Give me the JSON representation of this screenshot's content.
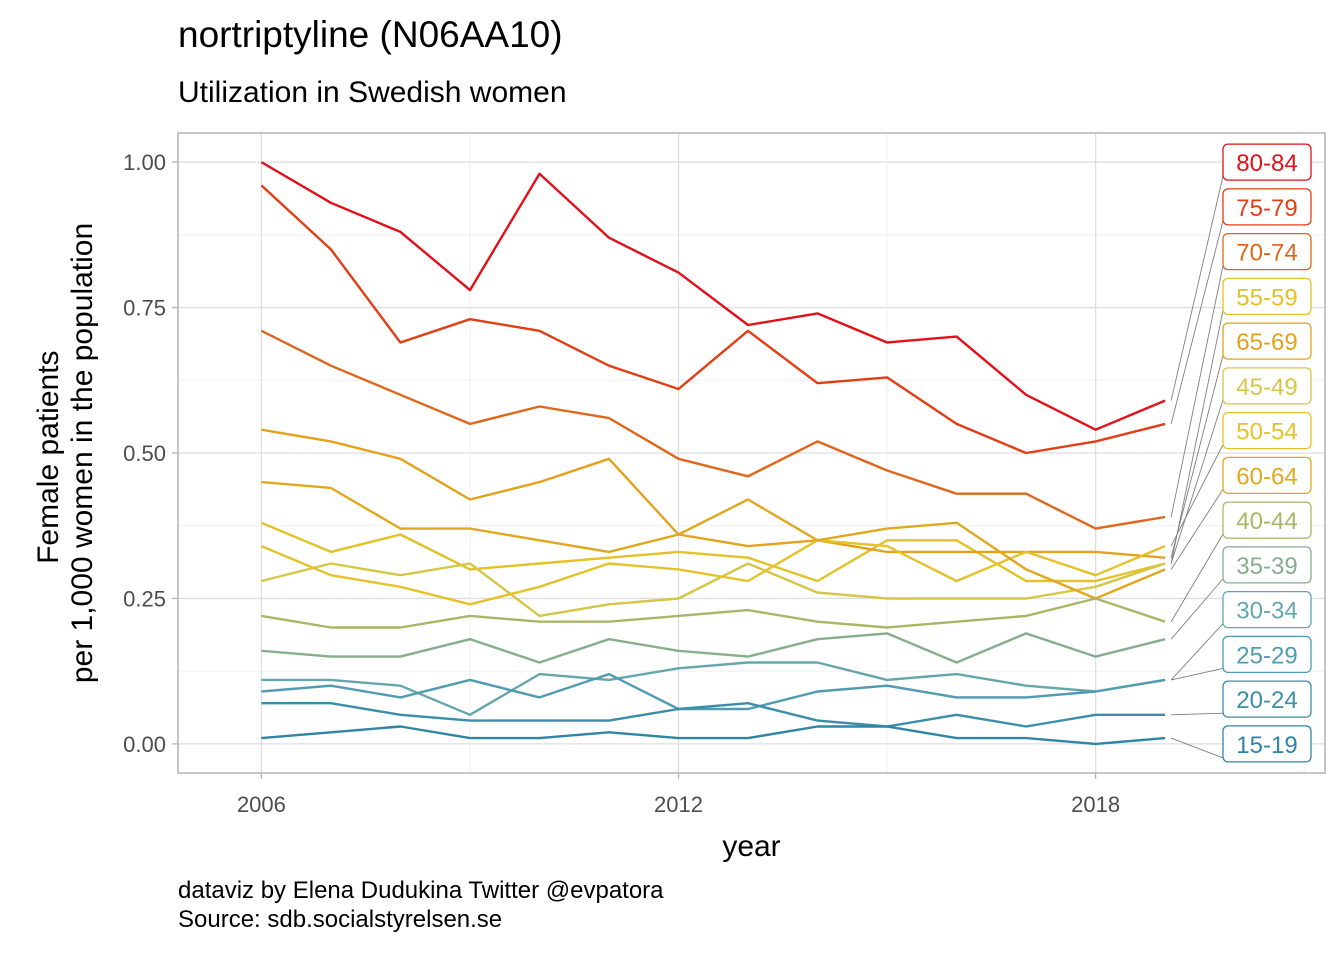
{
  "title": "nortriptyline (N06AA10)",
  "subtitle": "Utilization in Swedish women",
  "caption": {
    "line1": "dataviz by Elena Dudukina Twitter @evpatora",
    "line2": "Source: sdb.socialstyrelsen.se"
  },
  "chart_data": {
    "type": "line",
    "xlabel": "year",
    "ylabel_lines": [
      "Female patients",
      "per 1,000 women in the population"
    ],
    "x": [
      2006,
      2007,
      2008,
      2009,
      2010,
      2011,
      2012,
      2013,
      2014,
      2015,
      2016,
      2017,
      2018,
      2019
    ],
    "x_ticks": [
      2006,
      2012,
      2018
    ],
    "xlim": [
      2004.8,
      2021.3
    ],
    "y_ticks": [
      0.0,
      0.25,
      0.5,
      0.75,
      1.0
    ],
    "y_tick_labels": [
      "0.00",
      "0.25",
      "0.50",
      "0.75",
      "1.00"
    ],
    "ylim": [
      -0.05,
      1.05
    ],
    "grid": true,
    "legend": "direct labels at right",
    "series": [
      {
        "name": "80-84",
        "color": "#e3101a",
        "values": [
          1.0,
          0.93,
          0.88,
          0.78,
          0.98,
          0.87,
          0.81,
          0.72,
          0.74,
          0.69,
          0.7,
          0.6,
          0.54,
          0.59
        ]
      },
      {
        "name": "75-79",
        "color": "#e33d14",
        "values": [
          0.96,
          0.85,
          0.69,
          0.73,
          0.71,
          0.65,
          0.61,
          0.71,
          0.62,
          0.63,
          0.55,
          0.5,
          0.52,
          0.55
        ]
      },
      {
        "name": "70-74",
        "color": "#e0661a",
        "values": [
          0.71,
          0.65,
          0.6,
          0.55,
          0.58,
          0.56,
          0.49,
          0.46,
          0.52,
          0.47,
          0.43,
          0.43,
          0.37,
          0.39
        ]
      },
      {
        "name": "55-59",
        "color": "#e2c226",
        "values": [
          0.38,
          0.33,
          0.36,
          0.3,
          0.31,
          0.32,
          0.33,
          0.32,
          0.28,
          0.35,
          0.35,
          0.28,
          0.28,
          0.31
        ]
      },
      {
        "name": "65-69",
        "color": "#e3a11c",
        "values": [
          0.54,
          0.52,
          0.49,
          0.42,
          0.45,
          0.49,
          0.36,
          0.34,
          0.35,
          0.33,
          0.33,
          0.33,
          0.33,
          0.32
        ]
      },
      {
        "name": "45-49",
        "color": "#d6c646",
        "values": [
          0.28,
          0.31,
          0.29,
          0.31,
          0.22,
          0.24,
          0.25,
          0.31,
          0.26,
          0.25,
          0.25,
          0.25,
          0.27,
          0.31
        ]
      },
      {
        "name": "50-54",
        "color": "#e6c22a",
        "values": [
          0.34,
          0.29,
          0.27,
          0.24,
          0.27,
          0.31,
          0.3,
          0.28,
          0.35,
          0.34,
          0.28,
          0.33,
          0.29,
          0.34
        ]
      },
      {
        "name": "60-64",
        "color": "#e0a81e",
        "values": [
          0.45,
          0.44,
          0.37,
          0.37,
          0.35,
          0.33,
          0.36,
          0.42,
          0.35,
          0.37,
          0.38,
          0.3,
          0.25,
          0.3
        ]
      },
      {
        "name": "40-44",
        "color": "#aab666",
        "values": [
          0.22,
          0.2,
          0.2,
          0.22,
          0.21,
          0.21,
          0.22,
          0.23,
          0.21,
          0.2,
          0.21,
          0.22,
          0.25,
          0.21
        ]
      },
      {
        "name": "35-39",
        "color": "#86ae8c",
        "values": [
          0.16,
          0.15,
          0.15,
          0.18,
          0.14,
          0.18,
          0.16,
          0.15,
          0.18,
          0.19,
          0.14,
          0.19,
          0.15,
          0.18
        ]
      },
      {
        "name": "30-34",
        "color": "#65a6ad",
        "values": [
          0.11,
          0.11,
          0.1,
          0.05,
          0.12,
          0.11,
          0.13,
          0.14,
          0.14,
          0.11,
          0.12,
          0.1,
          0.09,
          0.11
        ]
      },
      {
        "name": "25-29",
        "color": "#4f9bb1",
        "values": [
          0.09,
          0.1,
          0.08,
          0.11,
          0.08,
          0.12,
          0.06,
          0.06,
          0.09,
          0.1,
          0.08,
          0.08,
          0.09,
          0.11
        ]
      },
      {
        "name": "20-24",
        "color": "#3a8ea9",
        "values": [
          0.07,
          0.07,
          0.05,
          0.04,
          0.04,
          0.04,
          0.06,
          0.07,
          0.04,
          0.03,
          0.05,
          0.03,
          0.05,
          0.05
        ]
      },
      {
        "name": "15-19",
        "color": "#2f86a4",
        "values": [
          0.01,
          0.02,
          0.03,
          0.01,
          0.01,
          0.02,
          0.01,
          0.01,
          0.03,
          0.03,
          0.01,
          0.01,
          0.0,
          0.01
        ]
      }
    ]
  }
}
